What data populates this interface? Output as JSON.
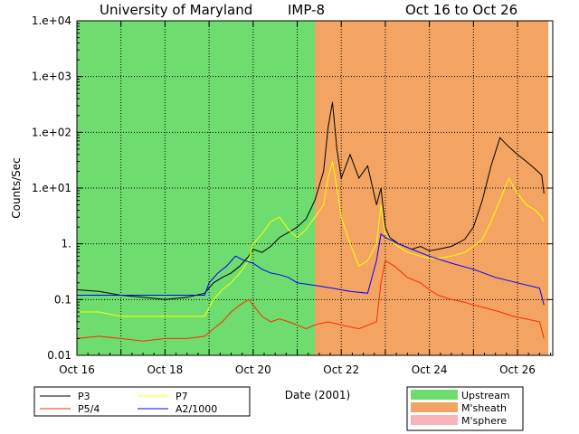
{
  "chart_data": {
    "type": "line",
    "title": {
      "left": "University of Maryland",
      "center": "IMP-8",
      "right": "Oct 16 to Oct 26"
    },
    "xlabel": "Date (2001)",
    "ylabel": "Counts/Sec",
    "y_scale": "log",
    "ylim": [
      0.01,
      10000
    ],
    "xlim": [
      16,
      26.8
    ],
    "grid": true,
    "x_ticks": [
      {
        "value": 16,
        "label": "Oct 16"
      },
      {
        "value": 18,
        "label": "Oct 18"
      },
      {
        "value": 20,
        "label": "Oct 20"
      },
      {
        "value": 22,
        "label": "Oct 22"
      },
      {
        "value": 24,
        "label": "Oct 24"
      },
      {
        "value": 26,
        "label": "Oct 26"
      }
    ],
    "y_ticks": [
      {
        "value": 0.01,
        "label": "0.01"
      },
      {
        "value": 0.1,
        "label": "0.1"
      },
      {
        "value": 1,
        "label": "1."
      },
      {
        "value": 10,
        "label": "1.e+01"
      },
      {
        "value": 100,
        "label": "1.e+02"
      },
      {
        "value": 1000,
        "label": "1.e+03"
      },
      {
        "value": 10000,
        "label": "1.e+04"
      }
    ],
    "regions": [
      {
        "name": "Upstream",
        "color": "#6edc6e",
        "x_start": 16.0,
        "x_end": 21.4
      },
      {
        "name": "M'sheath",
        "color": "#f4a462",
        "x_start": 21.4,
        "x_end": 26.7
      }
    ],
    "region_legend": [
      {
        "name": "Upstream",
        "color": "#6edc6e"
      },
      {
        "name": "M'sheath",
        "color": "#f4a462"
      },
      {
        "name": "M'sphere",
        "color": "#f8b4b8"
      }
    ],
    "series": [
      {
        "name": "P3",
        "color": "#000000",
        "x": [
          16.0,
          16.5,
          17.0,
          17.5,
          18.0,
          18.5,
          18.9,
          19.1,
          19.3,
          19.5,
          19.7,
          19.9,
          20.0,
          20.2,
          20.4,
          20.6,
          20.8,
          21.0,
          21.2,
          21.4,
          21.6,
          21.7,
          21.8,
          21.9,
          22.0,
          22.2,
          22.4,
          22.6,
          22.8,
          22.9,
          23.0,
          23.1,
          23.3,
          23.6,
          23.8,
          24.0,
          24.2,
          24.5,
          24.8,
          25.0,
          25.2,
          25.4,
          25.6,
          25.8,
          26.0,
          26.2,
          26.4,
          26.55,
          26.6
        ],
        "y": [
          0.15,
          0.14,
          0.12,
          0.11,
          0.1,
          0.11,
          0.13,
          0.2,
          0.25,
          0.3,
          0.4,
          0.6,
          0.8,
          0.7,
          0.9,
          1.3,
          1.6,
          2.0,
          2.8,
          6.0,
          20,
          120,
          350,
          50,
          15,
          40,
          15,
          25,
          5,
          10,
          2.0,
          1.3,
          1.0,
          0.8,
          0.9,
          0.75,
          0.8,
          0.9,
          1.2,
          2.0,
          6.0,
          25,
          80,
          55,
          40,
          30,
          22,
          17,
          8
        ]
      },
      {
        "name": "P5/4",
        "color": "#ff2a00",
        "x": [
          16.0,
          16.5,
          17.0,
          17.5,
          18.0,
          18.5,
          18.9,
          19.1,
          19.3,
          19.5,
          19.7,
          19.9,
          20.0,
          20.2,
          20.4,
          20.6,
          20.8,
          21.0,
          21.2,
          21.4,
          21.7,
          22.0,
          22.4,
          22.8,
          22.9,
          23.0,
          23.2,
          23.5,
          23.8,
          24.0,
          24.2,
          24.5,
          24.8,
          25.0,
          25.3,
          25.6,
          25.9,
          26.2,
          26.5,
          26.6
        ],
        "y": [
          0.02,
          0.022,
          0.02,
          0.018,
          0.02,
          0.02,
          0.022,
          0.03,
          0.04,
          0.06,
          0.08,
          0.1,
          0.08,
          0.05,
          0.04,
          0.045,
          0.04,
          0.035,
          0.03,
          0.035,
          0.04,
          0.035,
          0.03,
          0.04,
          0.2,
          0.5,
          0.4,
          0.25,
          0.2,
          0.15,
          0.12,
          0.1,
          0.09,
          0.08,
          0.07,
          0.06,
          0.05,
          0.045,
          0.04,
          0.02
        ]
      },
      {
        "name": "P7",
        "color": "#ffff00",
        "x": [
          16.0,
          16.5,
          17.0,
          17.5,
          18.0,
          18.5,
          18.9,
          19.1,
          19.3,
          19.5,
          19.7,
          19.9,
          20.0,
          20.2,
          20.4,
          20.6,
          20.8,
          21.0,
          21.2,
          21.4,
          21.6,
          21.7,
          21.8,
          21.9,
          22.0,
          22.2,
          22.4,
          22.6,
          22.8,
          22.9,
          23.0,
          23.2,
          23.5,
          23.8,
          24.0,
          24.2,
          24.5,
          24.8,
          25.0,
          25.2,
          25.4,
          25.6,
          25.8,
          26.0,
          26.2,
          26.4,
          26.55,
          26.6
        ],
        "y": [
          0.06,
          0.06,
          0.05,
          0.05,
          0.05,
          0.05,
          0.05,
          0.1,
          0.15,
          0.2,
          0.3,
          0.5,
          1.0,
          1.5,
          2.5,
          3.0,
          1.8,
          1.3,
          1.8,
          3.0,
          5.0,
          15,
          30,
          10,
          3.0,
          1.0,
          0.4,
          0.5,
          1.0,
          5.0,
          1.5,
          1.0,
          0.7,
          0.6,
          0.55,
          0.55,
          0.6,
          0.7,
          0.9,
          1.2,
          2.5,
          6.0,
          15,
          8.0,
          5.0,
          4.0,
          3.0,
          2.5
        ]
      },
      {
        "name": "A2/1000",
        "color": "#0000ff",
        "x": [
          16.0,
          16.5,
          17.0,
          17.5,
          18.0,
          18.5,
          18.9,
          19.0,
          19.2,
          19.4,
          19.6,
          19.8,
          20.0,
          20.2,
          20.4,
          20.6,
          20.8,
          21.0,
          21.4,
          21.8,
          22.2,
          22.6,
          22.8,
          22.9,
          23.0,
          23.3,
          23.6,
          24.0,
          24.5,
          25.0,
          25.5,
          26.0,
          26.5,
          26.6
        ],
        "y": [
          0.12,
          0.12,
          0.12,
          0.12,
          0.12,
          0.12,
          0.12,
          0.2,
          0.3,
          0.4,
          0.6,
          0.5,
          0.45,
          0.35,
          0.3,
          0.28,
          0.25,
          0.2,
          0.18,
          0.16,
          0.14,
          0.13,
          0.5,
          1.5,
          1.3,
          1.0,
          0.8,
          0.6,
          0.45,
          0.35,
          0.25,
          0.2,
          0.16,
          0.08
        ]
      }
    ]
  }
}
